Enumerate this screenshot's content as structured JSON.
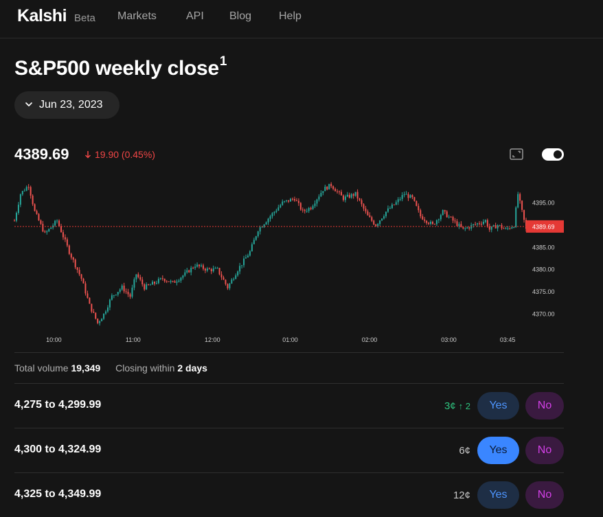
{
  "nav": {
    "brand": "Kalshi",
    "beta": "Beta",
    "links": [
      "Markets",
      "API",
      "Blog",
      "Help"
    ]
  },
  "market": {
    "title": "S&P500 weekly close",
    "footnote": "1",
    "date": "Jun 23, 2023",
    "price": "4389.69",
    "change": "19.90 (0.45%)"
  },
  "stats": {
    "volume_label": "Total volume",
    "volume": "19,349",
    "closing_label": "Closing within",
    "closing": "2 days"
  },
  "contracts": [
    {
      "range": "4,275 to 4,299.99",
      "price": "3¢",
      "delta": "↑ 2",
      "yes": "Yes",
      "no": "No"
    },
    {
      "range": "4,300 to 4,324.99",
      "price": "6¢",
      "delta": "",
      "yes": "Yes",
      "no": "No"
    },
    {
      "range": "4,325 to 4,349.99",
      "price": "12¢",
      "delta": "",
      "yes": "Yes",
      "no": "No"
    }
  ],
  "icons": {
    "chevron": "chevron-down-icon",
    "arrow": "arrow-down-icon",
    "expand": "expand-icon",
    "toggle": "toggle-switch"
  },
  "colors": {
    "up": "#26a69a",
    "down": "#ef5350",
    "price_line": "#e53935",
    "yes": "#3a86ff",
    "no": "#d440e8"
  },
  "chart_data": {
    "type": "candlestick",
    "x_ticks": [
      "10:00",
      "11:00",
      "12:00",
      "01:00",
      "02:00",
      "03:00",
      "03:45"
    ],
    "y_ticks": [
      "4395.00",
      "4385.00",
      "4380.00",
      "4375.00",
      "4370.00"
    ],
    "ylim": [
      4367,
      4400
    ],
    "current_price": 4389.69,
    "current_label": "4389.69",
    "path": [
      [
        0,
        4391
      ],
      [
        3,
        4397
      ],
      [
        7,
        4399
      ],
      [
        10,
        4393
      ],
      [
        15,
        4388
      ],
      [
        21,
        4391
      ],
      [
        27,
        4384
      ],
      [
        33,
        4378
      ],
      [
        37,
        4372
      ],
      [
        41,
        4368
      ],
      [
        44,
        4370
      ],
      [
        48,
        4374
      ],
      [
        53,
        4376
      ],
      [
        57,
        4374
      ],
      [
        60,
        4379
      ],
      [
        64,
        4376
      ],
      [
        69,
        4377
      ],
      [
        73,
        4378
      ],
      [
        78,
        4377
      ],
      [
        84,
        4379
      ],
      [
        89,
        4381
      ],
      [
        95,
        4380
      ],
      [
        100,
        4380
      ],
      [
        105,
        4376
      ],
      [
        110,
        4380
      ],
      [
        116,
        4384
      ],
      [
        120,
        4389
      ],
      [
        126,
        4392
      ],
      [
        132,
        4395
      ],
      [
        138,
        4396
      ],
      [
        142,
        4393
      ],
      [
        146,
        4394
      ],
      [
        152,
        4398
      ],
      [
        156,
        4399
      ],
      [
        162,
        4396
      ],
      [
        168,
        4397
      ],
      [
        174,
        4392
      ],
      [
        178,
        4390
      ],
      [
        183,
        4393
      ],
      [
        188,
        4395
      ],
      [
        192,
        4397
      ],
      [
        196,
        4396
      ],
      [
        200,
        4392
      ],
      [
        206,
        4390
      ],
      [
        211,
        4393
      ],
      [
        216,
        4391
      ],
      [
        221,
        4389
      ],
      [
        226,
        4390
      ],
      [
        232,
        4391
      ],
      [
        234,
        4389
      ],
      [
        238,
        4390
      ],
      [
        242,
        4389
      ],
      [
        246,
        4390
      ],
      [
        248,
        4397
      ],
      [
        250,
        4393
      ],
      [
        252,
        4389
      ]
    ]
  }
}
